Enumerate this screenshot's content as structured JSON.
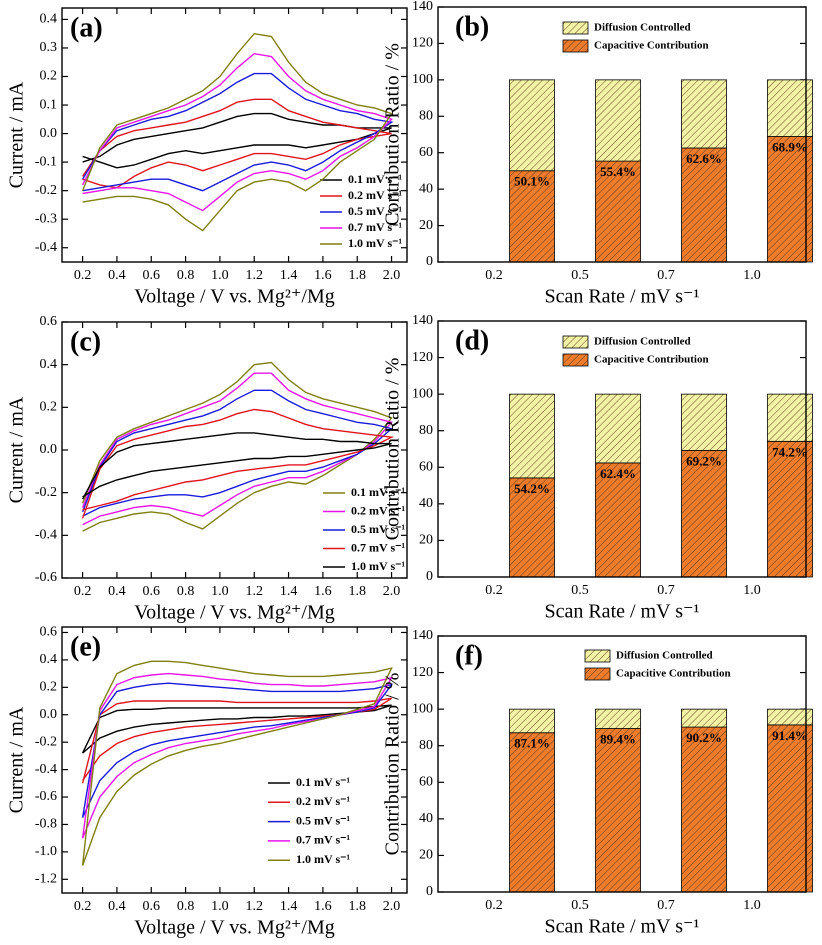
{
  "chart_data": [
    {
      "type": "line",
      "title": "(a)",
      "xlabel": "Voltage / V vs. Mg²⁺/Mg",
      "ylabel": "Current / mA",
      "x": [
        0.2,
        0.3,
        0.4,
        0.5,
        0.6,
        0.7,
        0.8,
        0.9,
        1.0,
        1.1,
        1.2,
        1.3,
        1.4,
        1.5,
        1.6,
        1.7,
        1.8,
        1.9,
        2.0,
        1.9,
        1.8,
        1.7,
        1.6,
        1.5,
        1.4,
        1.3,
        1.2,
        1.1,
        1.0,
        0.9,
        0.8,
        0.7,
        0.6,
        0.5,
        0.4,
        0.3,
        0.2
      ],
      "xlim": [
        0.08,
        2.09
      ],
      "ylim": [
        -0.45,
        0.44
      ],
      "xticks": [
        0.2,
        0.4,
        0.6,
        0.8,
        {
          "value": 1,
          "label": "1.0"
        },
        1.2,
        1.4,
        1.6,
        1.8,
        {
          "value": 2,
          "label": "2.0"
        }
      ],
      "yticks": [
        -0.4,
        -0.3,
        -0.2,
        -0.1,
        {
          "value": 0,
          "label": "0.0"
        },
        0.1,
        0.2,
        0.3,
        0.4
      ],
      "series": [
        {
          "name": "0.1 mV s⁻¹",
          "color": "#000000",
          "values": [
            -0.1,
            -0.08,
            -0.04,
            -0.02,
            -0.01,
            0.0,
            0.01,
            0.02,
            0.04,
            0.06,
            0.07,
            0.07,
            0.05,
            0.04,
            0.03,
            0.03,
            0.02,
            0.02,
            0.02,
            0.0,
            -0.02,
            -0.03,
            -0.04,
            -0.05,
            -0.04,
            -0.04,
            -0.04,
            -0.05,
            -0.06,
            -0.07,
            -0.06,
            -0.07,
            -0.09,
            -0.11,
            -0.12,
            -0.1,
            -0.08
          ]
        },
        {
          "name": "0.2 mV s⁻¹",
          "color": "#e0141e",
          "values": [
            -0.15,
            -0.06,
            -0.01,
            0.01,
            0.02,
            0.03,
            0.04,
            0.06,
            0.08,
            0.11,
            0.12,
            0.12,
            0.08,
            0.06,
            0.04,
            0.03,
            0.02,
            0.01,
            0.0,
            -0.01,
            -0.02,
            -0.04,
            -0.07,
            -0.09,
            -0.08,
            -0.07,
            -0.07,
            -0.09,
            -0.11,
            -0.13,
            -0.11,
            -0.1,
            -0.12,
            -0.15,
            -0.19,
            -0.18,
            -0.16
          ]
        },
        {
          "name": "0.5 mV s⁻¹",
          "color": "#1a1adc",
          "values": [
            -0.16,
            -0.06,
            0.01,
            0.03,
            0.05,
            0.06,
            0.08,
            0.11,
            0.14,
            0.18,
            0.21,
            0.21,
            0.16,
            0.12,
            0.1,
            0.08,
            0.07,
            0.05,
            0.04,
            0.0,
            -0.03,
            -0.06,
            -0.1,
            -0.13,
            -0.11,
            -0.1,
            -0.11,
            -0.14,
            -0.17,
            -0.2,
            -0.18,
            -0.16,
            -0.16,
            -0.17,
            -0.18,
            -0.19,
            -0.2
          ]
        },
        {
          "name": "0.7 mV s⁻¹",
          "color": "#ea14ea",
          "values": [
            -0.18,
            -0.06,
            0.02,
            0.04,
            0.06,
            0.08,
            0.1,
            0.13,
            0.17,
            0.23,
            0.28,
            0.27,
            0.2,
            0.15,
            0.12,
            0.1,
            0.08,
            0.07,
            0.05,
            -0.01,
            -0.05,
            -0.08,
            -0.13,
            -0.16,
            -0.14,
            -0.13,
            -0.14,
            -0.17,
            -0.22,
            -0.27,
            -0.24,
            -0.21,
            -0.2,
            -0.19,
            -0.19,
            -0.2,
            -0.21
          ]
        },
        {
          "name": "1.0 mV s⁻¹",
          "color": "#808010",
          "values": [
            -0.2,
            -0.05,
            0.03,
            0.05,
            0.07,
            0.09,
            0.12,
            0.15,
            0.2,
            0.28,
            0.35,
            0.34,
            0.25,
            0.18,
            0.14,
            0.12,
            0.1,
            0.09,
            0.07,
            -0.02,
            -0.06,
            -0.1,
            -0.16,
            -0.2,
            -0.17,
            -0.16,
            -0.17,
            -0.2,
            -0.27,
            -0.34,
            -0.3,
            -0.25,
            -0.23,
            -0.22,
            -0.22,
            -0.23,
            -0.24
          ]
        }
      ]
    },
    {
      "type": "bar",
      "title": "(b)",
      "xlabel": "Scan Rate / mV s⁻¹",
      "ylabel": "Contribution Ratio / %",
      "categories": [
        "0.2",
        "0.5",
        "0.7",
        "1.0"
      ],
      "ylim": [
        0,
        140
      ],
      "yticks": [
        0,
        20,
        40,
        60,
        80,
        100,
        120,
        140
      ],
      "series": [
        {
          "name": "Capacitive Contribution",
          "color": "#ec7b2c",
          "values": [
            50.1,
            55.4,
            62.6,
            68.9
          ],
          "value_labels": [
            "50.1%",
            "55.4%",
            "62.6%",
            "68.9%"
          ]
        },
        {
          "name": "Diffusion Controlled",
          "color": "#f3f3a6",
          "values": [
            49.9,
            44.6,
            37.4,
            31.1
          ]
        }
      ]
    },
    {
      "type": "line",
      "title": "(c)",
      "xlabel": "Voltage / V vs. Mg²⁺/Mg",
      "ylabel": "Current / mA",
      "x": [
        0.2,
        0.3,
        0.4,
        0.5,
        0.6,
        0.7,
        0.8,
        0.9,
        1.0,
        1.1,
        1.2,
        1.3,
        1.4,
        1.5,
        1.6,
        1.7,
        1.8,
        1.9,
        2.0,
        1.9,
        1.8,
        1.7,
        1.6,
        1.5,
        1.4,
        1.3,
        1.2,
        1.1,
        1.0,
        0.9,
        0.8,
        0.7,
        0.6,
        0.5,
        0.4,
        0.3,
        0.2
      ],
      "xlim": [
        0.08,
        2.09
      ],
      "ylim": [
        -0.6,
        0.6
      ],
      "xticks": [
        0.2,
        0.4,
        0.6,
        0.8,
        {
          "value": 1,
          "label": "1.0"
        },
        1.2,
        1.4,
        1.6,
        1.8,
        {
          "value": 2,
          "label": "2.0"
        }
      ],
      "yticks": [
        -0.6,
        -0.4,
        -0.2,
        {
          "value": 0,
          "label": "0.0"
        },
        0.2,
        0.4,
        0.6
      ],
      "series": [
        {
          "name": "0.1 mV s⁻¹",
          "color": "#808010",
          "values": [
            -0.25,
            -0.05,
            0.06,
            0.1,
            0.13,
            0.16,
            0.19,
            0.22,
            0.26,
            0.32,
            0.4,
            0.41,
            0.33,
            0.27,
            0.24,
            0.22,
            0.2,
            0.18,
            0.15,
            0.05,
            -0.02,
            -0.07,
            -0.12,
            -0.16,
            -0.15,
            -0.17,
            -0.2,
            -0.25,
            -0.31,
            -0.37,
            -0.34,
            -0.3,
            -0.29,
            -0.3,
            -0.32,
            -0.34,
            -0.38
          ]
        },
        {
          "name": "0.2 mV s⁻¹",
          "color": "#ea14ea",
          "values": [
            -0.27,
            -0.07,
            0.05,
            0.09,
            0.12,
            0.14,
            0.17,
            0.2,
            0.23,
            0.29,
            0.36,
            0.36,
            0.28,
            0.24,
            0.21,
            0.19,
            0.17,
            0.15,
            0.13,
            0.04,
            -0.02,
            -0.06,
            -0.1,
            -0.13,
            -0.13,
            -0.15,
            -0.17,
            -0.21,
            -0.26,
            -0.31,
            -0.29,
            -0.27,
            -0.26,
            -0.27,
            -0.29,
            -0.31,
            -0.35
          ]
        },
        {
          "name": "0.5 mV s⁻¹",
          "color": "#1a1adc",
          "values": [
            -0.29,
            -0.08,
            0.04,
            0.08,
            0.1,
            0.12,
            0.14,
            0.16,
            0.19,
            0.24,
            0.28,
            0.28,
            0.23,
            0.19,
            0.17,
            0.15,
            0.13,
            0.12,
            0.1,
            0.03,
            -0.02,
            -0.05,
            -0.08,
            -0.1,
            -0.1,
            -0.12,
            -0.14,
            -0.17,
            -0.2,
            -0.22,
            -0.21,
            -0.21,
            -0.22,
            -0.23,
            -0.25,
            -0.27,
            -0.31
          ]
        },
        {
          "name": "0.7 mV s⁻¹",
          "color": "#e0141e",
          "values": [
            -0.32,
            -0.09,
            0.02,
            0.05,
            0.07,
            0.09,
            0.11,
            0.12,
            0.14,
            0.17,
            0.19,
            0.18,
            0.15,
            0.12,
            0.1,
            0.09,
            0.08,
            0.07,
            0.06,
            0.02,
            -0.01,
            -0.03,
            -0.05,
            -0.07,
            -0.07,
            -0.08,
            -0.09,
            -0.1,
            -0.12,
            -0.14,
            -0.15,
            -0.17,
            -0.19,
            -0.21,
            -0.24,
            -0.26,
            -0.28
          ]
        },
        {
          "name": "1.0 mV s⁻¹",
          "color": "#000000",
          "values": [
            -0.23,
            -0.08,
            -0.01,
            0.02,
            0.03,
            0.04,
            0.05,
            0.06,
            0.07,
            0.08,
            0.08,
            0.07,
            0.06,
            0.05,
            0.05,
            0.04,
            0.04,
            0.03,
            0.03,
            0.01,
            0.0,
            -0.01,
            -0.02,
            -0.03,
            -0.03,
            -0.04,
            -0.04,
            -0.05,
            -0.06,
            -0.07,
            -0.08,
            -0.09,
            -0.1,
            -0.12,
            -0.14,
            -0.17,
            -0.22
          ]
        }
      ]
    },
    {
      "type": "bar",
      "title": "(d)",
      "xlabel": "Scan Rate / mV s⁻¹",
      "ylabel": "Contribution Ratio / %",
      "categories": [
        "0.2",
        "0.5",
        "0.7",
        "1.0"
      ],
      "ylim": [
        0,
        140
      ],
      "yticks": [
        0,
        20,
        40,
        60,
        80,
        100,
        120,
        140
      ],
      "series": [
        {
          "name": "Capacitive Contribution",
          "color": "#ec7b2c",
          "values": [
            54.2,
            62.4,
            69.2,
            74.2
          ],
          "value_labels": [
            "54.2%",
            "62.4%",
            "69.2%",
            "74.2%"
          ]
        },
        {
          "name": "Diffusion Controlled",
          "color": "#f3f3a6",
          "values": [
            45.8,
            37.6,
            30.8,
            25.8
          ]
        }
      ]
    },
    {
      "type": "line",
      "title": "(e)",
      "xlabel": "Voltage / V vs. Mg²⁺/Mg",
      "ylabel": "Current / mA",
      "x": [
        0.2,
        0.3,
        0.4,
        0.5,
        0.6,
        0.7,
        0.8,
        0.9,
        1.0,
        1.1,
        1.2,
        1.3,
        1.4,
        1.5,
        1.6,
        1.7,
        1.8,
        1.9,
        2.0,
        1.9,
        1.8,
        1.7,
        1.6,
        1.5,
        1.4,
        1.3,
        1.2,
        1.1,
        1.0,
        0.9,
        0.8,
        0.7,
        0.6,
        0.5,
        0.4,
        0.3,
        0.2
      ],
      "xlim": [
        0.08,
        2.09
      ],
      "ylim": [
        -1.3,
        0.64
      ],
      "xticks": [
        0.2,
        0.4,
        0.6,
        0.8,
        {
          "value": 1,
          "label": "1.0"
        },
        1.2,
        1.4,
        1.6,
        1.8,
        {
          "value": 2,
          "label": "2.0"
        }
      ],
      "yticks": [
        -1.2,
        {
          "value": -1,
          "label": "-1.0"
        },
        -0.8,
        -0.6,
        -0.4,
        -0.2,
        {
          "value": 0,
          "label": "0.0"
        },
        0.2,
        0.4,
        0.6
      ],
      "series": [
        {
          "name": "0.1 mV s⁻¹",
          "color": "#000000",
          "values": [
            -0.28,
            -0.02,
            0.03,
            0.04,
            0.04,
            0.05,
            0.05,
            0.05,
            0.05,
            0.05,
            0.05,
            0.05,
            0.05,
            0.05,
            0.05,
            0.05,
            0.05,
            0.06,
            0.07,
            0.03,
            0.02,
            0.01,
            0.0,
            -0.01,
            -0.01,
            -0.02,
            -0.02,
            -0.03,
            -0.03,
            -0.04,
            -0.05,
            -0.06,
            -0.07,
            -0.09,
            -0.12,
            -0.17,
            -0.28
          ]
        },
        {
          "name": "0.2 mV s⁻¹",
          "color": "#e0141e",
          "values": [
            -0.5,
            0.0,
            0.08,
            0.1,
            0.1,
            0.1,
            0.1,
            0.1,
            0.1,
            0.09,
            0.09,
            0.09,
            0.09,
            0.09,
            0.09,
            0.09,
            0.09,
            0.1,
            0.12,
            0.04,
            0.02,
            0.0,
            -0.01,
            -0.02,
            -0.03,
            -0.04,
            -0.05,
            -0.06,
            -0.07,
            -0.08,
            -0.09,
            -0.11,
            -0.13,
            -0.16,
            -0.21,
            -0.3,
            -0.48
          ]
        },
        {
          "name": "0.5 mV s⁻¹",
          "color": "#1a1adc",
          "values": [
            -0.75,
            0.0,
            0.17,
            0.2,
            0.22,
            0.23,
            0.22,
            0.21,
            0.2,
            0.19,
            0.18,
            0.17,
            0.17,
            0.17,
            0.17,
            0.17,
            0.18,
            0.19,
            0.22,
            0.05,
            0.02,
            0.0,
            -0.02,
            -0.04,
            -0.06,
            -0.08,
            -0.09,
            -0.11,
            -0.13,
            -0.15,
            -0.17,
            -0.19,
            -0.22,
            -0.27,
            -0.35,
            -0.48,
            -0.75
          ]
        },
        {
          "name": "0.7 mV s⁻¹",
          "color": "#ea14ea",
          "values": [
            -0.9,
            0.03,
            0.22,
            0.27,
            0.29,
            0.3,
            0.29,
            0.28,
            0.26,
            0.25,
            0.23,
            0.22,
            0.22,
            0.21,
            0.21,
            0.22,
            0.23,
            0.24,
            0.27,
            0.06,
            0.03,
            0.0,
            -0.03,
            -0.05,
            -0.07,
            -0.1,
            -0.12,
            -0.14,
            -0.17,
            -0.19,
            -0.21,
            -0.24,
            -0.29,
            -0.35,
            -0.45,
            -0.6,
            -0.9
          ]
        },
        {
          "name": "1.0 mV s⁻¹",
          "color": "#808010",
          "values": [
            -1.1,
            0.05,
            0.3,
            0.36,
            0.39,
            0.39,
            0.38,
            0.36,
            0.34,
            0.32,
            0.3,
            0.29,
            0.28,
            0.28,
            0.28,
            0.29,
            0.3,
            0.31,
            0.34,
            0.08,
            0.04,
            0.0,
            -0.03,
            -0.06,
            -0.09,
            -0.12,
            -0.15,
            -0.18,
            -0.21,
            -0.23,
            -0.26,
            -0.3,
            -0.36,
            -0.44,
            -0.56,
            -0.75,
            -1.1
          ]
        }
      ]
    },
    {
      "type": "bar",
      "title": "(f)",
      "xlabel": "Scan Rate / mV s⁻¹",
      "ylabel": "Contribution Ratio / %",
      "categories": [
        "0.2",
        "0.5",
        "0.7",
        "1.0"
      ],
      "ylim": [
        0,
        140
      ],
      "yticks": [
        0,
        20,
        40,
        60,
        80,
        100,
        120,
        140
      ],
      "series": [
        {
          "name": "Capacitive Contribution",
          "color": "#ec7b2c",
          "values": [
            87.1,
            89.4,
            90.2,
            91.4
          ],
          "value_labels": [
            "87.1%",
            "89.4%",
            "90.2%",
            "91.4%"
          ]
        },
        {
          "name": "Diffusion Controlled",
          "color": "#f3f3a6",
          "values": [
            12.9,
            10.6,
            9.8,
            8.6
          ]
        }
      ]
    }
  ]
}
